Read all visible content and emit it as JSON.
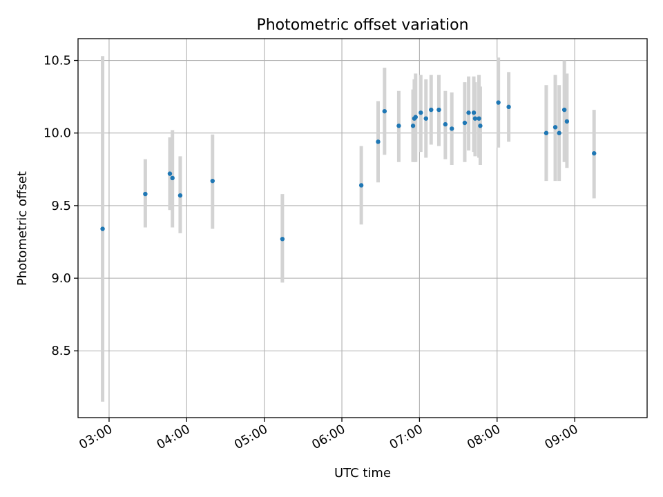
{
  "chart_data": {
    "type": "scatter",
    "title": "Photometric offset variation",
    "xlabel": "UTC time",
    "ylabel": "Photometric offset",
    "x_unit": "time of day (HH:MM, UTC)",
    "xlim": [
      "02:36",
      "09:56"
    ],
    "ylim": [
      8.04,
      10.65
    ],
    "grid": true,
    "legend": "none",
    "x_ticks": [
      "03:00",
      "04:00",
      "05:00",
      "06:00",
      "07:00",
      "08:00",
      "09:00"
    ],
    "y_ticks": [
      "8.5",
      "9.0",
      "9.5",
      "10.0",
      "10.5"
    ],
    "colors": {
      "point": "#1f77b4",
      "errorbar": "#d3d3d3",
      "grid": "#b0b0b0"
    },
    "series": [
      {
        "points": [
          {
            "x": "02:55",
            "y": 9.34,
            "ylo": 8.15,
            "yhi": 10.53
          },
          {
            "x": "03:28",
            "y": 9.58,
            "ylo": 9.35,
            "yhi": 9.82
          },
          {
            "x": "03:47",
            "y": 9.72,
            "ylo": 9.47,
            "yhi": 9.97
          },
          {
            "x": "03:49",
            "y": 9.69,
            "ylo": 9.35,
            "yhi": 10.02
          },
          {
            "x": "03:55",
            "y": 9.57,
            "ylo": 9.31,
            "yhi": 9.84
          },
          {
            "x": "04:20",
            "y": 9.67,
            "ylo": 9.34,
            "yhi": 9.99
          },
          {
            "x": "05:14",
            "y": 9.27,
            "ylo": 8.97,
            "yhi": 9.58
          },
          {
            "x": "06:15",
            "y": 9.64,
            "ylo": 9.37,
            "yhi": 9.91
          },
          {
            "x": "06:28",
            "y": 9.94,
            "ylo": 9.66,
            "yhi": 10.22
          },
          {
            "x": "06:33",
            "y": 10.15,
            "ylo": 9.85,
            "yhi": 10.45
          },
          {
            "x": "06:44",
            "y": 10.05,
            "ylo": 9.8,
            "yhi": 10.29
          },
          {
            "x": "06:55",
            "y": 10.05,
            "ylo": 9.8,
            "yhi": 10.3
          },
          {
            "x": "06:56",
            "y": 10.1,
            "ylo": 9.8,
            "yhi": 10.37
          },
          {
            "x": "06:57",
            "y": 10.11,
            "ylo": 9.8,
            "yhi": 10.41
          },
          {
            "x": "07:01",
            "y": 10.14,
            "ylo": 9.87,
            "yhi": 10.4
          },
          {
            "x": "07:05",
            "y": 10.1,
            "ylo": 9.83,
            "yhi": 10.37
          },
          {
            "x": "07:09",
            "y": 10.16,
            "ylo": 9.92,
            "yhi": 10.4
          },
          {
            "x": "07:15",
            "y": 10.16,
            "ylo": 9.91,
            "yhi": 10.4
          },
          {
            "x": "07:20",
            "y": 10.06,
            "ylo": 9.82,
            "yhi": 10.29
          },
          {
            "x": "07:25",
            "y": 10.03,
            "ylo": 9.78,
            "yhi": 10.28
          },
          {
            "x": "07:35",
            "y": 10.07,
            "ylo": 9.8,
            "yhi": 10.35
          },
          {
            "x": "07:38",
            "y": 10.14,
            "ylo": 9.88,
            "yhi": 10.39
          },
          {
            "x": "07:42",
            "y": 10.14,
            "ylo": 9.87,
            "yhi": 10.39
          },
          {
            "x": "07:43",
            "y": 10.1,
            "ylo": 9.84,
            "yhi": 10.35
          },
          {
            "x": "07:46",
            "y": 10.1,
            "ylo": 9.83,
            "yhi": 10.4
          },
          {
            "x": "07:47",
            "y": 10.05,
            "ylo": 9.78,
            "yhi": 10.32
          },
          {
            "x": "08:01",
            "y": 10.21,
            "ylo": 9.9,
            "yhi": 10.52
          },
          {
            "x": "08:09",
            "y": 10.18,
            "ylo": 9.94,
            "yhi": 10.42
          },
          {
            "x": "08:38",
            "y": 10.0,
            "ylo": 9.67,
            "yhi": 10.33
          },
          {
            "x": "08:45",
            "y": 10.04,
            "ylo": 9.67,
            "yhi": 10.4
          },
          {
            "x": "08:48",
            "y": 10.0,
            "ylo": 9.67,
            "yhi": 10.33
          },
          {
            "x": "08:52",
            "y": 10.16,
            "ylo": 9.8,
            "yhi": 10.5
          },
          {
            "x": "08:54",
            "y": 10.08,
            "ylo": 9.76,
            "yhi": 10.41
          },
          {
            "x": "09:15",
            "y": 9.86,
            "ylo": 9.55,
            "yhi": 10.16
          }
        ]
      }
    ]
  }
}
